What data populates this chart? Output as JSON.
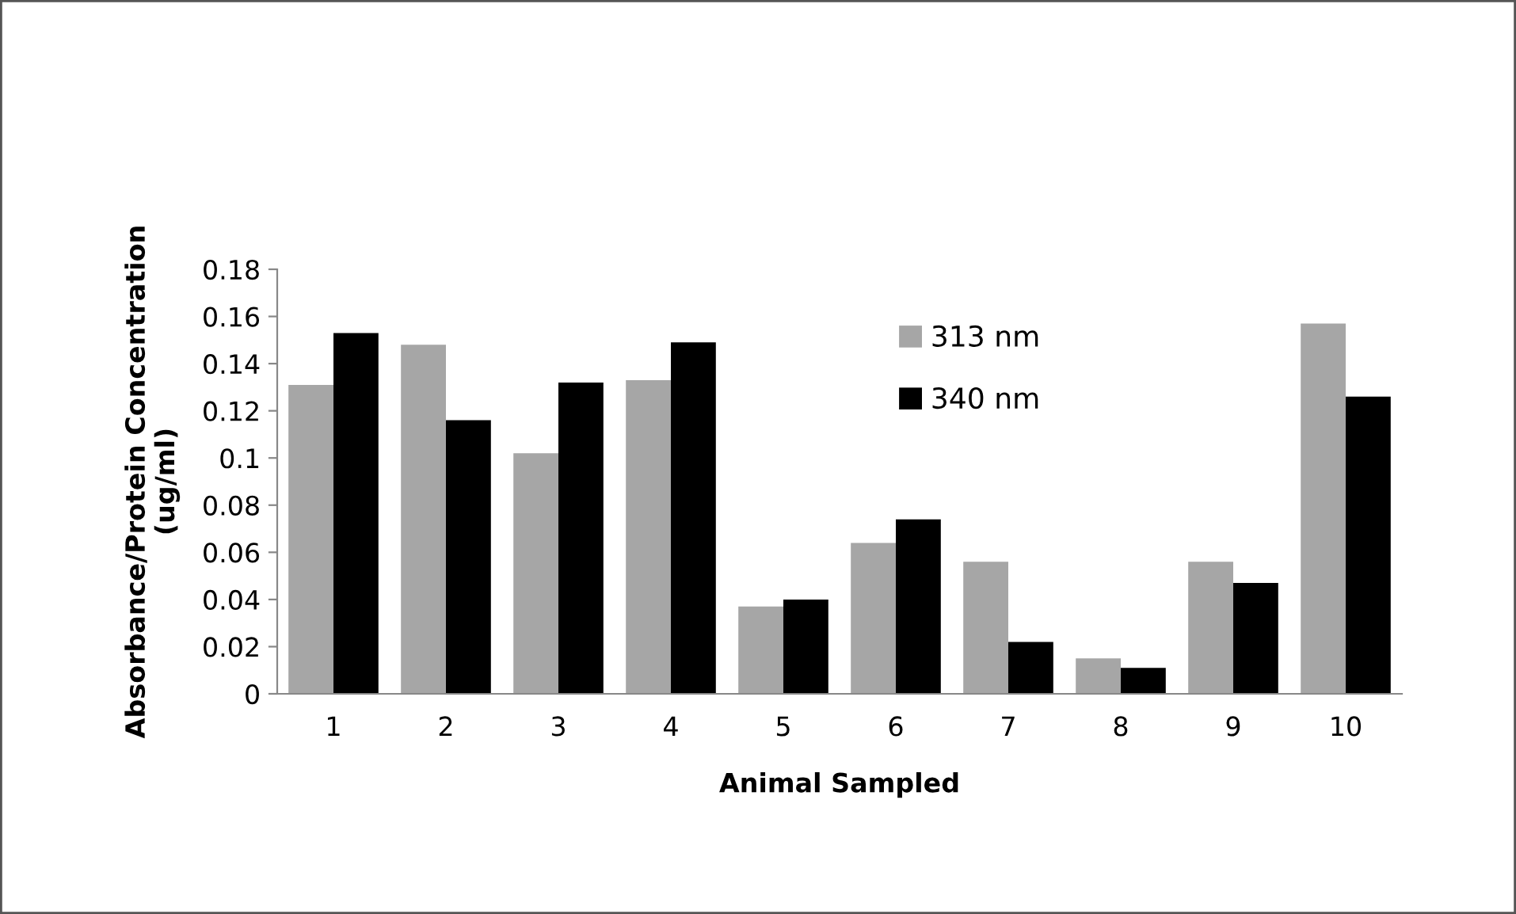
{
  "chart_data": {
    "type": "bar",
    "xlabel": "Animal Sampled",
    "ylabel": "Absorbance/Protein Concentration\n(ug/ml)",
    "categories": [
      "1",
      "2",
      "3",
      "4",
      "5",
      "6",
      "7",
      "8",
      "9",
      "10"
    ],
    "series": [
      {
        "name": "313 nm",
        "color": "#a6a6a6",
        "values": [
          0.131,
          0.148,
          0.102,
          0.133,
          0.037,
          0.064,
          0.056,
          0.015,
          0.056,
          0.157
        ]
      },
      {
        "name": "340 nm",
        "color": "#000000",
        "values": [
          0.153,
          0.116,
          0.132,
          0.149,
          0.04,
          0.074,
          0.022,
          0.011,
          0.047,
          0.126
        ]
      }
    ],
    "ylim": [
      0,
      0.18
    ],
    "yticks": [
      0,
      0.02,
      0.04,
      0.06,
      0.08,
      0.1,
      0.12,
      0.14,
      0.16,
      0.18
    ],
    "grid": false,
    "legend": "top right"
  }
}
